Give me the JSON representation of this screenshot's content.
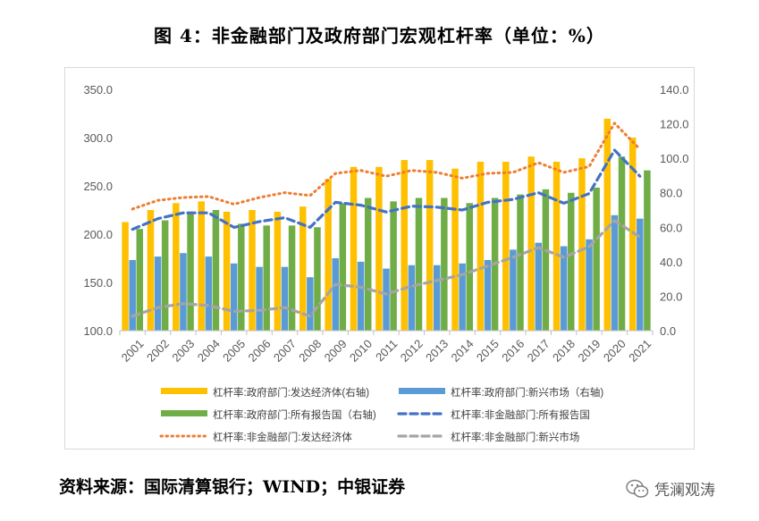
{
  "title": "图 4：非金融部门及政府部门宏观杠杆率（单位：%）",
  "source": "资料来源：国际清算银行；WIND；中银证券",
  "watermark": "凭澜观涛",
  "colors": {
    "gov_adv": "#FFC000",
    "gov_em": "#5B9BD5",
    "gov_all": "#70AD47",
    "nf_all": "#4472C4",
    "nf_adv": "#ED7D31",
    "nf_em": "#A5A5A5"
  },
  "chart_data": {
    "type": "bar",
    "categories": [
      "2001",
      "2002",
      "2003",
      "2004",
      "2005",
      "2006",
      "2007",
      "2008",
      "2009",
      "2010",
      "2011",
      "2012",
      "2013",
      "2014",
      "2015",
      "2016",
      "2017",
      "2018",
      "2019",
      "2020",
      "2021"
    ],
    "y_left": {
      "min": 100,
      "max": 350,
      "ticks": [
        "100.0",
        "150.0",
        "200.0",
        "250.0",
        "300.0",
        "350.0"
      ]
    },
    "y_right": {
      "min": 0,
      "max": 140,
      "ticks": [
        "0.0",
        "20.0",
        "40.0",
        "60.0",
        "80.0",
        "100.0",
        "120.0",
        "140.0"
      ]
    },
    "grid": false,
    "legend_position": "bottom",
    "series": [
      {
        "name": "杠杆率:政府部门:发达经济体(右轴)",
        "type": "bar",
        "axis": "right",
        "color_key": "gov_adv",
        "values": [
          63,
          70,
          74,
          75,
          69,
          70,
          69,
          72,
          88,
          95,
          95,
          99,
          99,
          94,
          98,
          98,
          101,
          98,
          100,
          123,
          112
        ]
      },
      {
        "name": "杠杆率:政府部门:新兴市场（右轴)",
        "type": "bar",
        "axis": "right",
        "color_key": "gov_em",
        "values": [
          41,
          43,
          45,
          43,
          39,
          37,
          37,
          31,
          42,
          40,
          36,
          38,
          38,
          39,
          41,
          47,
          51,
          49,
          53,
          67,
          65
        ]
      },
      {
        "name": "杠杆率:政府部门:所有报告国（右轴)",
        "type": "bar",
        "axis": "right",
        "color_key": "gov_all",
        "values": [
          59,
          64,
          68,
          70,
          62,
          61,
          61,
          60,
          74,
          77,
          75,
          77,
          77,
          74,
          77,
          79,
          82,
          80,
          83,
          101,
          93
        ]
      },
      {
        "name": "杠杆率:非金融部门:所有报告国",
        "type": "line",
        "axis": "left",
        "style": "dashed",
        "color_key": "nf_all",
        "values": [
          205,
          216,
          222,
          222,
          207,
          213,
          217,
          207,
          233,
          230,
          223,
          229,
          228,
          225,
          233,
          236,
          243,
          232,
          242,
          287,
          260
        ]
      },
      {
        "name": "杠杆率:非金融部门:发达经济体",
        "type": "line",
        "axis": "left",
        "style": "dotted",
        "color_key": "nf_adv",
        "values": [
          226,
          235,
          238,
          239,
          231,
          238,
          243,
          240,
          263,
          266,
          260,
          266,
          264,
          258,
          263,
          264,
          274,
          264,
          270,
          315,
          288
        ]
      },
      {
        "name": "杠杆率:非金融部门:新兴市场",
        "type": "line",
        "axis": "left",
        "style": "dashed",
        "color_key": "nf_em",
        "values": [
          115,
          124,
          128,
          126,
          120,
          121,
          124,
          115,
          148,
          145,
          138,
          146,
          152,
          158,
          167,
          176,
          186,
          176,
          187,
          214,
          197
        ]
      }
    ]
  }
}
